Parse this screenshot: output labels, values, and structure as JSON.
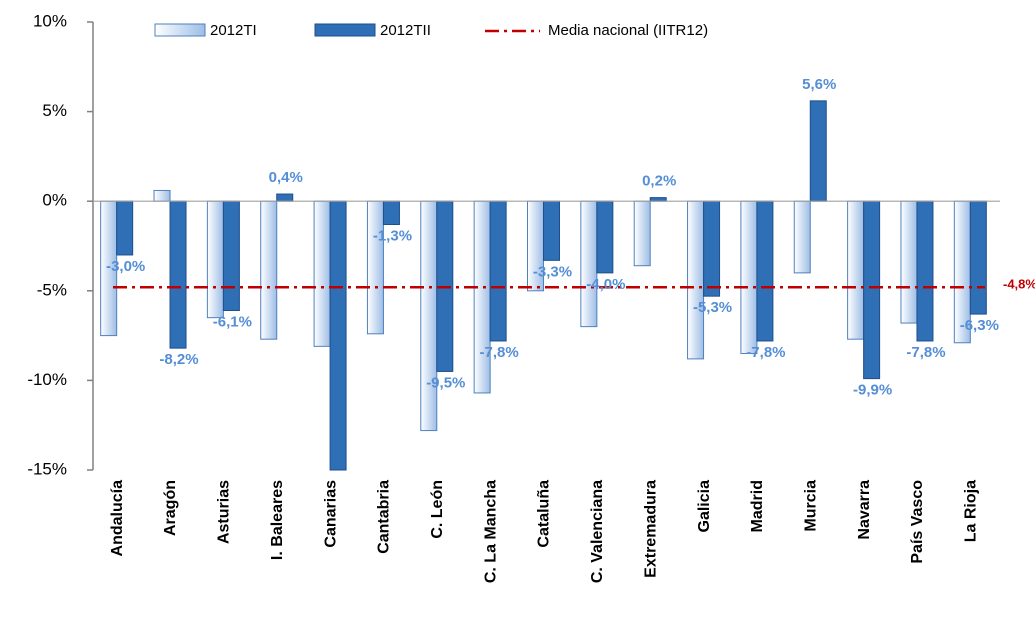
{
  "chart_data": {
    "type": "bar",
    "categories": [
      "Andalucía",
      "Aragón",
      "Asturias",
      "I. Baleares",
      "Canarias",
      "Cantabria",
      "C. León",
      "C. La Mancha",
      "Cataluña",
      "C. Valenciana",
      "Extremadura",
      "Galicia",
      "Madrid",
      "Murcia",
      "Navarra",
      "País Vasco",
      "La Rioja"
    ],
    "series": [
      {
        "name": "2012TI",
        "color": "#c6d9f1",
        "edge": "#4f81bd",
        "values": [
          -7.5,
          0.6,
          -6.5,
          -7.7,
          -8.1,
          -7.4,
          -12.8,
          -10.7,
          -5.0,
          -7.0,
          -3.6,
          -8.8,
          -8.5,
          -4.0,
          -7.7,
          -6.8,
          -7.9
        ]
      },
      {
        "name": "2012TII",
        "color": "#2f6fb5",
        "edge": "#1f4e8c",
        "values": [
          -3.0,
          -8.2,
          -6.1,
          0.4,
          -15.0,
          -1.3,
          -9.5,
          -7.8,
          -3.3,
          -4.0,
          0.2,
          -5.3,
          -7.8,
          5.6,
          -9.9,
          -7.8,
          -6.3
        ],
        "value_labels": [
          "-3,0%",
          "-8,2%",
          "-6,1%",
          "0,4%",
          null,
          "-1,3%",
          "-9,5%",
          "-7,8%",
          "-3,3%",
          "-4,0%",
          "0,2%",
          "-5,3%",
          "-7,8%",
          "5,6%",
          "-9,9%",
          "-7,8%",
          "-6,3%"
        ]
      }
    ],
    "average": {
      "name": "Media nacional (IITR12)",
      "value": -4.8,
      "label": "-4,8%",
      "color": "#c00000"
    },
    "label_color": "#558ed5",
    "ylim": [
      -15,
      10
    ],
    "yticks": [
      {
        "value": -15,
        "label": "-15%"
      },
      {
        "value": -10,
        "label": "-10%"
      },
      {
        "value": -5,
        "label": "-5%"
      },
      {
        "value": 0,
        "label": "0%"
      },
      {
        "value": 5,
        "label": "5%"
      },
      {
        "value": 10,
        "label": "10%"
      }
    ]
  }
}
